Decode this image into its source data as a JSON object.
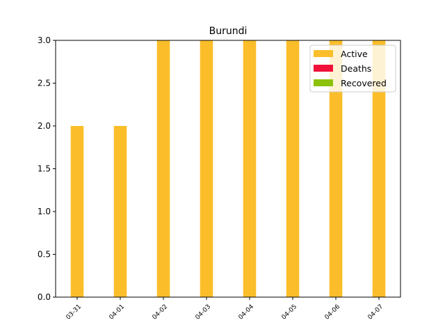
{
  "chart_data": {
    "type": "bar",
    "stacked": true,
    "title": "Burundi",
    "xlabel": "",
    "ylabel": "",
    "categories": [
      "03-31",
      "04-01",
      "04-02",
      "04-03",
      "04-04",
      "04-05",
      "04-06",
      "04-07"
    ],
    "series": [
      {
        "name": "Active",
        "color": "#fbbe2a",
        "values": [
          2,
          2,
          3,
          3,
          3,
          3,
          3,
          3
        ]
      },
      {
        "name": "Deaths",
        "color": "#f0103a",
        "values": [
          0,
          0,
          0,
          0,
          0,
          0,
          0,
          0
        ]
      },
      {
        "name": "Recovered",
        "color": "#8cc20a",
        "values": [
          0,
          0,
          0,
          0,
          0,
          0,
          0,
          0
        ]
      }
    ],
    "ylim": [
      0,
      3.0
    ],
    "yticks": [
      "0.0",
      "0.5",
      "1.0",
      "1.5",
      "2.0",
      "2.5",
      "3.0"
    ],
    "grid": false,
    "legend_position": "top-right"
  }
}
